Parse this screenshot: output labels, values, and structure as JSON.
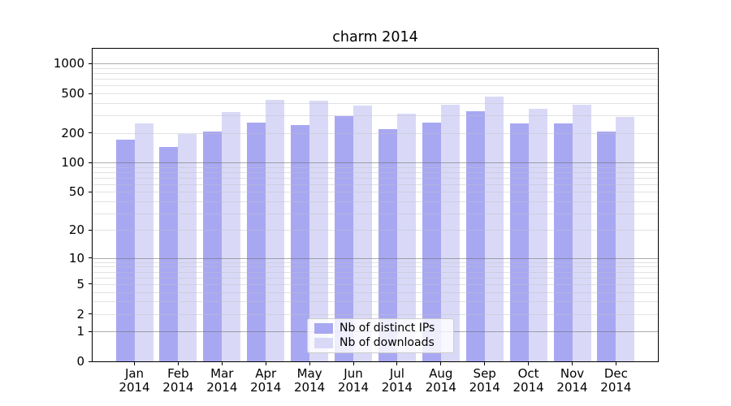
{
  "title": "charm 2014",
  "chart_data": {
    "type": "bar",
    "title": "charm 2014",
    "categories": [
      "Jan",
      "Feb",
      "Mar",
      "Apr",
      "May",
      "Jun",
      "Jul",
      "Aug",
      "Sep",
      "Oct",
      "Nov",
      "Dec"
    ],
    "category_year": "2014",
    "series": [
      {
        "name": "Nb of distinct IPs",
        "color": "#a8a8f2",
        "values": [
          170,
          145,
          205,
          255,
          240,
          295,
          220,
          255,
          330,
          250,
          250,
          205
        ]
      },
      {
        "name": "Nb of downloads",
        "color": "#d9d9f7",
        "values": [
          250,
          195,
          325,
          430,
          425,
          380,
          310,
          385,
          460,
          350,
          385,
          290
        ]
      }
    ],
    "xlabel": "",
    "ylabel": "",
    "y_scale": "log1p",
    "y_ticks": [
      1000,
      500,
      200,
      100,
      50,
      20,
      10,
      5,
      2,
      1,
      0
    ],
    "ylim": [
      0,
      1000
    ],
    "grid": {
      "major_lines": [
        1,
        10,
        100,
        1000
      ],
      "minor_lines": "2-9 within each decade",
      "grid_on": true,
      "grid_above_bars": true
    },
    "legend": {
      "position": "lower center",
      "items": [
        "Nb of distinct IPs",
        "Nb of downloads"
      ]
    }
  },
  "colors": {
    "distinct_ips": "#a8a8f2",
    "downloads": "#d9d9f7",
    "grid_major": "#9c9c9c",
    "grid_minor": "#e2e2e8",
    "spine": "#000000",
    "legend_border": "#cccccc",
    "background": "#ffffff"
  }
}
